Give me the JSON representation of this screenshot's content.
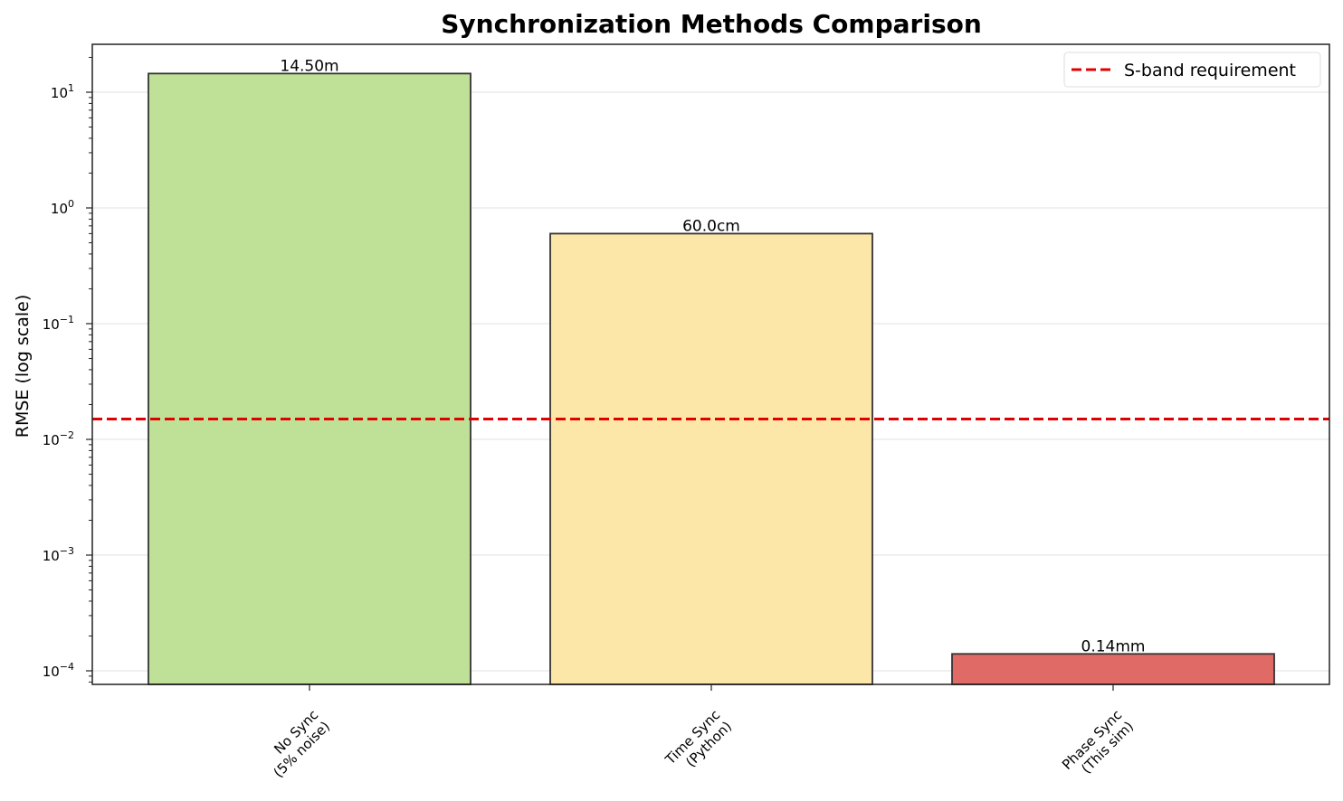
{
  "chart_data": {
    "type": "bar",
    "title": "Synchronization Methods Comparison",
    "xlabel": "",
    "ylabel": "RMSE (log scale)",
    "yscale": "log",
    "ylim": [
      7.5e-05,
      25
    ],
    "y_ticks": [
      {
        "value": 0.0001,
        "base": "10",
        "exp": "−4"
      },
      {
        "value": 0.001,
        "base": "10",
        "exp": "−3"
      },
      {
        "value": 0.01,
        "base": "10",
        "exp": "−2"
      },
      {
        "value": 0.1,
        "base": "10",
        "exp": "−1"
      },
      {
        "value": 1,
        "base": "10",
        "exp": "0"
      },
      {
        "value": 10,
        "base": "10",
        "exp": "1"
      }
    ],
    "grid": "horizontal",
    "categories": [
      [
        "No Sync",
        "(5% noise)"
      ],
      [
        "Time Sync",
        "(Python)"
      ],
      [
        "Phase Sync",
        "(This sim)"
      ]
    ],
    "values": [
      14.5,
      0.6,
      0.00014
    ],
    "data_labels": [
      "14.50m",
      "60.0cm",
      "0.14mm"
    ],
    "bar_colors": [
      "#bfe197",
      "#fce7a9",
      "#e06b66"
    ],
    "reference_line": {
      "name": "S-band requirement",
      "value": 0.015,
      "color": "#e00000",
      "style": "dashed"
    },
    "legend": {
      "position": "top-right",
      "entries": [
        "S-band requirement"
      ]
    }
  }
}
